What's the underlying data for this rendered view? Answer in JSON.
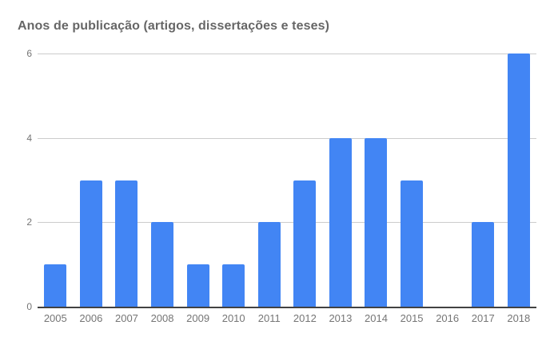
{
  "colors": {
    "bar": "#4285f4",
    "title": "#666666",
    "axis_label": "#757575",
    "gridline": "#cccccc",
    "baseline": "#424242",
    "background": "#ffffff"
  },
  "chart_data": {
    "type": "bar",
    "title": "Anos de publicação (artigos, dissertações e teses)",
    "categories": [
      "2005",
      "2006",
      "2007",
      "2008",
      "2009",
      "2010",
      "2011",
      "2012",
      "2013",
      "2014",
      "2015",
      "2016",
      "2017",
      "2018"
    ],
    "values": [
      1,
      3,
      3,
      2,
      1,
      1,
      2,
      3,
      4,
      4,
      3,
      0,
      2,
      6
    ],
    "xlabel": "",
    "ylabel": "",
    "ylim": [
      0,
      6
    ],
    "yticks": [
      0,
      2,
      4,
      6
    ],
    "grid": true,
    "legend": "none"
  }
}
